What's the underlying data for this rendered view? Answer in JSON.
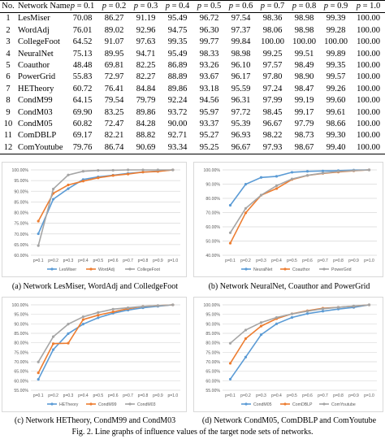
{
  "table": {
    "headers": [
      "No.",
      "Network Name",
      "p = 0.1",
      "p = 0.2",
      "p = 0.3",
      "p = 0.4",
      "p = 0.5",
      "p = 0.6",
      "p = 0.7",
      "p = 0.8",
      "p = 0.9",
      "p = 1.0"
    ],
    "rows": [
      [
        "1",
        "LesMiser",
        "70.08",
        "86.27",
        "91.19",
        "95.49",
        "96.72",
        "97.54",
        "98.36",
        "98.98",
        "99.39",
        "100.00"
      ],
      [
        "2",
        "WordAdj",
        "76.01",
        "89.02",
        "92.96",
        "94.75",
        "96.30",
        "97.37",
        "98.06",
        "98.98",
        "99.28",
        "100.00"
      ],
      [
        "3",
        "CollegeFoot",
        "64.52",
        "91.07",
        "97.63",
        "99.35",
        "99.77",
        "99.84",
        "100.00",
        "100.00",
        "100.00",
        "100.00"
      ],
      [
        "4",
        "NeuralNet",
        "75.13",
        "89.95",
        "94.71",
        "95.49",
        "98.33",
        "98.98",
        "99.25",
        "99.51",
        "99.89",
        "100.00"
      ],
      [
        "5",
        "Coauthor",
        "48.48",
        "69.81",
        "82.25",
        "86.89",
        "93.26",
        "96.10",
        "97.57",
        "98.49",
        "99.35",
        "100.00"
      ],
      [
        "6",
        "PowerGrid",
        "55.83",
        "72.97",
        "82.27",
        "88.89",
        "93.67",
        "96.17",
        "97.80",
        "98.90",
        "99.57",
        "100.00"
      ],
      [
        "7",
        "HETheory",
        "60.72",
        "76.41",
        "84.84",
        "89.86",
        "93.18",
        "95.59",
        "97.24",
        "98.47",
        "99.26",
        "100.00"
      ],
      [
        "8",
        "CondM99",
        "64.15",
        "79.54",
        "79.79",
        "92.24",
        "94.56",
        "96.31",
        "97.99",
        "99.19",
        "99.60",
        "100.00"
      ],
      [
        "9",
        "CondM03",
        "69.90",
        "83.25",
        "89.86",
        "93.72",
        "95.97",
        "97.72",
        "98.45",
        "99.17",
        "99.61",
        "100.00"
      ],
      [
        "10",
        "CondM05",
        "60.82",
        "72.47",
        "84.28",
        "90.00",
        "93.37",
        "95.39",
        "96.67",
        "97.79",
        "98.66",
        "100.00"
      ],
      [
        "11",
        "ComDBLP",
        "69.17",
        "82.21",
        "88.82",
        "92.71",
        "95.27",
        "96.93",
        "98.22",
        "98.73",
        "99.30",
        "100.00"
      ],
      [
        "12",
        "ComYoutube",
        "79.76",
        "86.74",
        "90.69",
        "93.34",
        "95.25",
        "96.67",
        "97.93",
        "98.67",
        "99.40",
        "100.00"
      ]
    ]
  },
  "colors": {
    "blue": "#5b9bd5",
    "orange": "#ed7d31",
    "gray": "#a5a5a5",
    "grid": "#d9d9d9",
    "axis_text": "#595959"
  },
  "captions": {
    "a": "(a) Network LesMiser, WordAdj and ColledgeFoot",
    "b": "(b) Network NeuralNet, Coauthor and PowerGrid",
    "c": "(c) Network HETheory, CondM99 and CondM03",
    "d": "(d) Network CondM05, ComDBLP and ComYoutube",
    "figure": "Fig. 2. Line graphs of influence values of the target node sets of networks."
  },
  "chart_data": [
    {
      "type": "line",
      "categories": [
        "p=0.1",
        "p=0.2",
        "p=0.3",
        "p=0.4",
        "p=0.5",
        "p=0.6",
        "p=0.7",
        "p=0.8",
        "p=0.9",
        "p=1.0"
      ],
      "x_tick_labels": [
        "p=0.1",
        "p=0.2",
        "p=0.3",
        "p=0.4",
        "p=0.5",
        "p=0.6",
        "p=0.7",
        "p=0.8",
        "p=0.9",
        "p=1.0"
      ],
      "ylim": [
        60,
        100
      ],
      "y_tick_labels": [
        "60.00%",
        "65.00%",
        "70.00%",
        "75.00%",
        "80.00%",
        "85.00%",
        "90.00%",
        "95.00%",
        "100.00%"
      ],
      "grid": true,
      "legend": "bottom",
      "series": [
        {
          "name": "LesMiser",
          "color": "#5b9bd5",
          "values": [
            70.08,
            86.27,
            91.19,
            95.49,
            96.72,
            97.54,
            98.36,
            98.98,
            99.39,
            100.0
          ]
        },
        {
          "name": "WordAdj",
          "color": "#ed7d31",
          "values": [
            76.01,
            89.02,
            92.96,
            94.75,
            96.3,
            97.37,
            98.06,
            98.98,
            99.28,
            100.0
          ]
        },
        {
          "name": "CollegeFoot",
          "color": "#a5a5a5",
          "values": [
            64.52,
            91.07,
            97.63,
            99.35,
            99.77,
            99.84,
            100.0,
            100.0,
            100.0,
            100.0
          ]
        }
      ]
    },
    {
      "type": "line",
      "categories": [
        "p=0.1",
        "p=0.2",
        "p=0.3",
        "p=0.4",
        "p=0.5",
        "p=0.6",
        "p=0.7",
        "p=0.8",
        "p=0.9",
        "p=1.0"
      ],
      "x_tick_labels": [
        "p=0.1",
        "p=0.2",
        "p=0.3",
        "p=0.4",
        "p=0.5",
        "p=0.6",
        "p=0.7",
        "p=0.8",
        "p=0.9",
        "p=1.0"
      ],
      "ylim": [
        40,
        100
      ],
      "y_tick_labels": [
        "40.00%",
        "50.00%",
        "60.00%",
        "70.00%",
        "80.00%",
        "90.00%",
        "100.00%"
      ],
      "grid": true,
      "legend": "bottom",
      "series": [
        {
          "name": "NeuralNet",
          "color": "#5b9bd5",
          "values": [
            75.13,
            89.95,
            94.71,
            95.49,
            98.33,
            98.98,
            99.25,
            99.51,
            99.89,
            100.0
          ]
        },
        {
          "name": "Coauthor",
          "color": "#ed7d31",
          "values": [
            48.48,
            69.81,
            82.25,
            86.89,
            93.26,
            96.1,
            97.57,
            98.49,
            99.35,
            100.0
          ]
        },
        {
          "name": "PowerGrid",
          "color": "#a5a5a5",
          "values": [
            55.83,
            72.97,
            82.27,
            88.89,
            93.67,
            96.17,
            97.8,
            98.9,
            99.57,
            100.0
          ]
        }
      ]
    },
    {
      "type": "line",
      "categories": [
        "p=0.1",
        "p=0.2",
        "p=0.3",
        "p=0.4",
        "p=0.5",
        "p=0.6",
        "p=0.7",
        "p=0.8",
        "p=0.9",
        "p=1.0"
      ],
      "x_tick_labels": [
        "p=0.1",
        "p=0.2",
        "p=0.3",
        "p=0.4",
        "p=0.5",
        "p=0.6",
        "p=0.7",
        "p=0.8",
        "p=0.9",
        "p=1.0"
      ],
      "ylim": [
        55,
        100
      ],
      "y_tick_labels": [
        "55.00%",
        "60.00%",
        "65.00%",
        "70.00%",
        "75.00%",
        "80.00%",
        "85.00%",
        "90.00%",
        "95.00%",
        "100.00%"
      ],
      "grid": true,
      "legend": "bottom",
      "series": [
        {
          "name": "HETheory",
          "color": "#5b9bd5",
          "values": [
            60.72,
            76.41,
            84.84,
            89.86,
            93.18,
            95.59,
            97.24,
            98.47,
            99.26,
            100.0
          ]
        },
        {
          "name": "CondM99",
          "color": "#ed7d31",
          "values": [
            64.15,
            79.54,
            79.79,
            92.24,
            94.56,
            96.31,
            97.99,
            99.19,
            99.6,
            100.0
          ]
        },
        {
          "name": "CondM03",
          "color": "#a5a5a5",
          "values": [
            69.9,
            83.25,
            89.86,
            93.72,
            95.97,
            97.72,
            98.45,
            99.17,
            99.61,
            100.0
          ]
        }
      ]
    },
    {
      "type": "line",
      "categories": [
        "p=0.1",
        "p=0.2",
        "p=0.3",
        "p=0.4",
        "p=0.5",
        "p=0.6",
        "p=0.7",
        "p=0.8",
        "p=0.9",
        "p=1.0"
      ],
      "x_tick_labels": [
        "p=0.1",
        "p=0.2",
        "p=0.3",
        "p=0.4",
        "p=0.5",
        "p=0.6",
        "p=0.7",
        "p=0.8",
        "p=0.9",
        "p=1.0"
      ],
      "ylim": [
        55,
        100
      ],
      "y_tick_labels": [
        "55.00%",
        "60.00%",
        "65.00%",
        "70.00%",
        "75.00%",
        "80.00%",
        "85.00%",
        "90.00%",
        "95.00%",
        "100.00%"
      ],
      "grid": true,
      "legend": "bottom",
      "series": [
        {
          "name": "CondM05",
          "color": "#5b9bd5",
          "values": [
            60.82,
            72.47,
            84.28,
            90.0,
            93.37,
            95.39,
            96.67,
            97.79,
            98.66,
            100.0
          ]
        },
        {
          "name": "ComDBLP",
          "color": "#ed7d31",
          "values": [
            69.17,
            82.21,
            88.82,
            92.71,
            95.27,
            96.93,
            98.22,
            98.73,
            99.3,
            100.0
          ]
        },
        {
          "name": "ComYoutube",
          "color": "#a5a5a5",
          "values": [
            79.76,
            86.74,
            90.69,
            93.34,
            95.25,
            96.67,
            97.93,
            98.67,
            99.4,
            100.0
          ]
        }
      ]
    }
  ]
}
